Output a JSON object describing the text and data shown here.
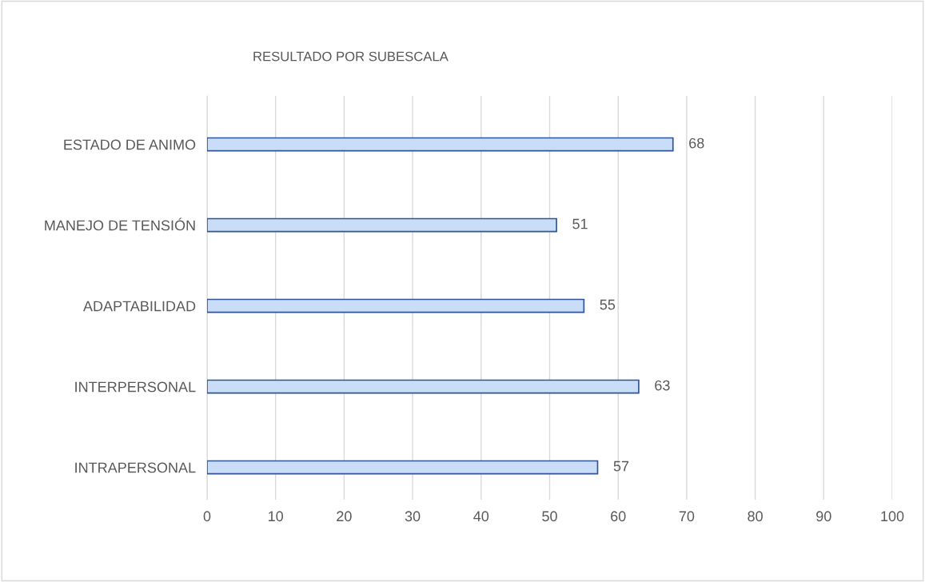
{
  "chart_data": {
    "type": "bar",
    "orientation": "horizontal",
    "title": "RESULTADO POR SUBESCALA",
    "categories": [
      "ESTADO DE ANIMO",
      "MANEJO DE TENSIÓN",
      "ADAPTABILIDAD",
      "INTERPERSONAL",
      "INTRAPERSONAL"
    ],
    "values": [
      68,
      51,
      55,
      63,
      57
    ],
    "color": "#c9dcf8",
    "data_labels": true,
    "xlim": [
      0,
      100
    ],
    "xticks": [
      0,
      10,
      20,
      30,
      40,
      50,
      60,
      70,
      80,
      90,
      100
    ],
    "grid": "x",
    "legend": false
  }
}
